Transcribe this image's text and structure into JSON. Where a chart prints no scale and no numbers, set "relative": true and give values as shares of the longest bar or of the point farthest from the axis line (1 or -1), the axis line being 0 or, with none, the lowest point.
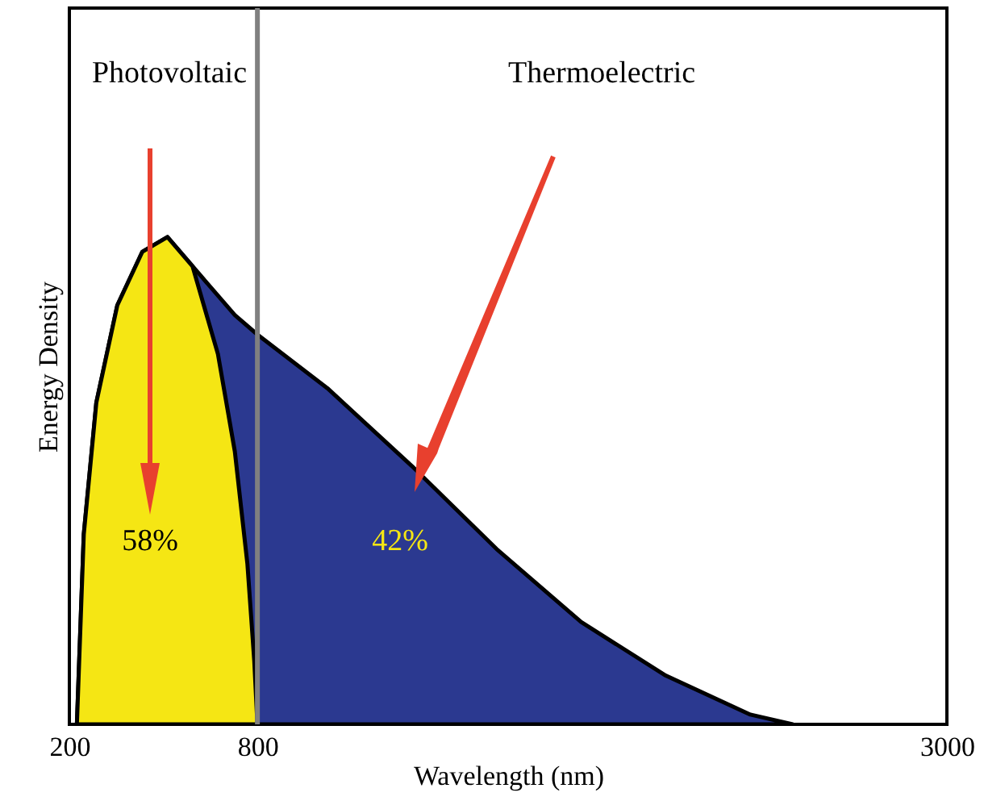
{
  "chart_data": {
    "type": "area",
    "relative": true,
    "xlabel": "Wavelength (nm)",
    "ylabel": "Energy Density",
    "xlim": [
      200,
      3000
    ],
    "xticks": [
      200,
      800,
      3000
    ],
    "grid": false,
    "series": [
      {
        "color": "#2b3990",
        "x": [
          224,
          246,
          286,
          353,
          433,
          513,
          620,
          728,
          800,
          1023,
          1293,
          1563,
          1833,
          2103,
          2373,
          2508
        ],
        "values": [
          0,
          0.39,
          0.66,
          0.86,
          0.97,
          1,
          0.92,
          0.84,
          0.8,
          0.69,
          0.53,
          0.36,
          0.21,
          0.1,
          0.02,
          0
        ]
      },
      {
        "color": "#f5e614",
        "x": [
          224,
          246,
          286,
          353,
          433,
          513,
          593,
          674,
          728,
          768,
          790,
          800
        ],
        "values": [
          0,
          0.39,
          0.66,
          0.86,
          0.97,
          1,
          0.94,
          0.76,
          0.56,
          0.33,
          0.13,
          0
        ]
      }
    ],
    "ref_lines": [
      {
        "axis": "x",
        "value": 800,
        "color": "#808080"
      }
    ],
    "annotations": [
      "Photovoltaic",
      "Thermoelectric",
      "58%",
      "42%"
    ]
  }
}
